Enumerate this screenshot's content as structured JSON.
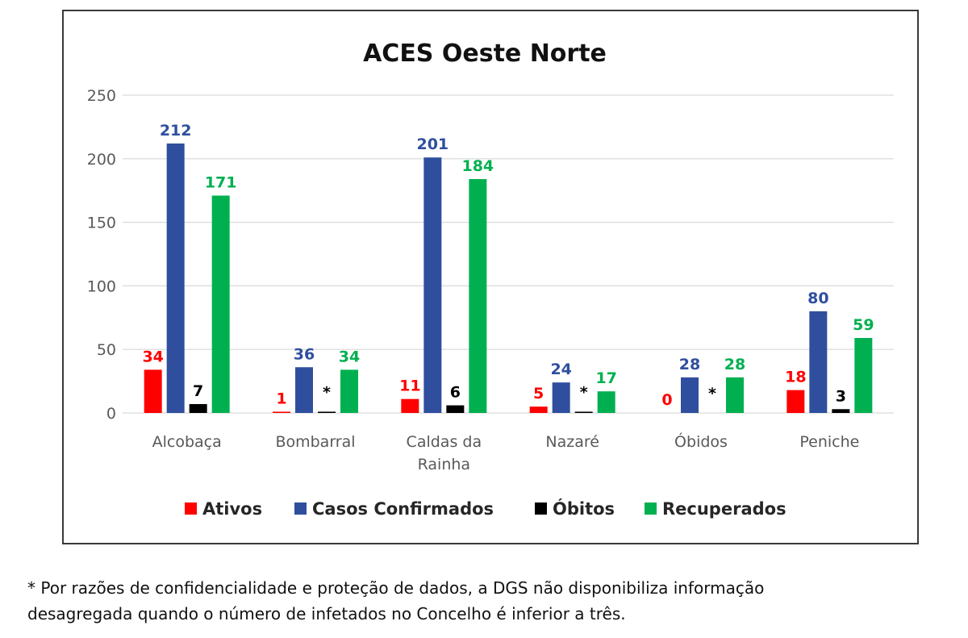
{
  "chart_data": {
    "type": "bar",
    "title": "ACES Oeste Norte",
    "categories": [
      [
        "Alcobaça"
      ],
      [
        "Bombarral"
      ],
      [
        "Caldas da",
        "Rainha"
      ],
      [
        "Nazaré"
      ],
      [
        "Óbidos"
      ],
      [
        "Peniche"
      ]
    ],
    "series": [
      {
        "name": "Ativos",
        "color": "#ff0000",
        "values": [
          34,
          1,
          11,
          5,
          0,
          18
        ],
        "labels": [
          "34",
          "1",
          "11",
          "5",
          "0",
          "18"
        ]
      },
      {
        "name": "Casos Confirmados",
        "color": "#2f4f9e",
        "values": [
          212,
          36,
          201,
          24,
          28,
          80
        ],
        "labels": [
          "212",
          "36",
          "201",
          "24",
          "28",
          "80"
        ]
      },
      {
        "name": "Óbitos",
        "color": "#000000",
        "values": [
          7,
          1,
          6,
          1,
          0,
          3
        ],
        "labels": [
          "7",
          "*",
          "6",
          "*",
          "*",
          "3"
        ]
      },
      {
        "name": "Recuperados",
        "color": "#00b050",
        "values": [
          171,
          34,
          184,
          17,
          28,
          59
        ],
        "labels": [
          "171",
          "34",
          "184",
          "17",
          "28",
          "59"
        ]
      }
    ],
    "ylim": [
      0,
      250
    ],
    "yticks": [
      0,
      50,
      100,
      150,
      200,
      250
    ],
    "grid": true,
    "legend_position": "bottom"
  },
  "footnote": {
    "lines": [
      "* Por razões de confidencialidade e proteção de dados, a DGS não disponibiliza informação",
      "desagregada quando o número de infetados no Concelho é inferior a três."
    ]
  }
}
